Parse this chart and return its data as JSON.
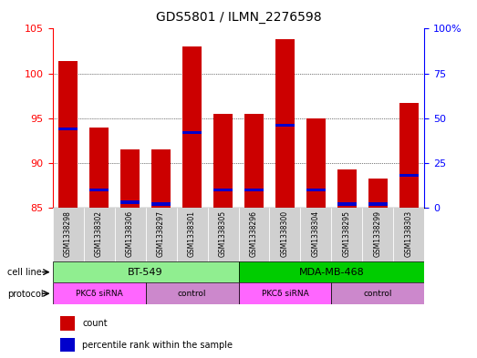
{
  "title": "GDS5801 / ILMN_2276598",
  "samples": [
    "GSM1338298",
    "GSM1338302",
    "GSM1338306",
    "GSM1338297",
    "GSM1338301",
    "GSM1338305",
    "GSM1338296",
    "GSM1338300",
    "GSM1338304",
    "GSM1338295",
    "GSM1338299",
    "GSM1338303"
  ],
  "count_values": [
    101.4,
    94.0,
    91.5,
    91.5,
    103.0,
    95.5,
    95.5,
    103.8,
    95.0,
    89.3,
    88.3,
    96.7
  ],
  "percentile_values": [
    44,
    10,
    3,
    2,
    42,
    10,
    10,
    46,
    10,
    2,
    2,
    18
  ],
  "ylim_left": [
    85,
    105
  ],
  "ylim_right": [
    0,
    100
  ],
  "yticks_left": [
    85,
    90,
    95,
    100,
    105
  ],
  "yticks_right": [
    0,
    25,
    50,
    75,
    100
  ],
  "ytick_labels_right": [
    "0",
    "25",
    "50",
    "75",
    "100%"
  ],
  "bar_color": "#cc0000",
  "blue_color": "#0000cc",
  "legend_count_color": "#cc0000",
  "legend_percentile_color": "#0000cc",
  "cell_line_bt549_color": "#90ee90",
  "cell_line_mda_color": "#00cc00",
  "proto_sirna_color": "#ff66ff",
  "proto_control_color": "#cc88cc",
  "gray_bg": "#d0d0d0"
}
